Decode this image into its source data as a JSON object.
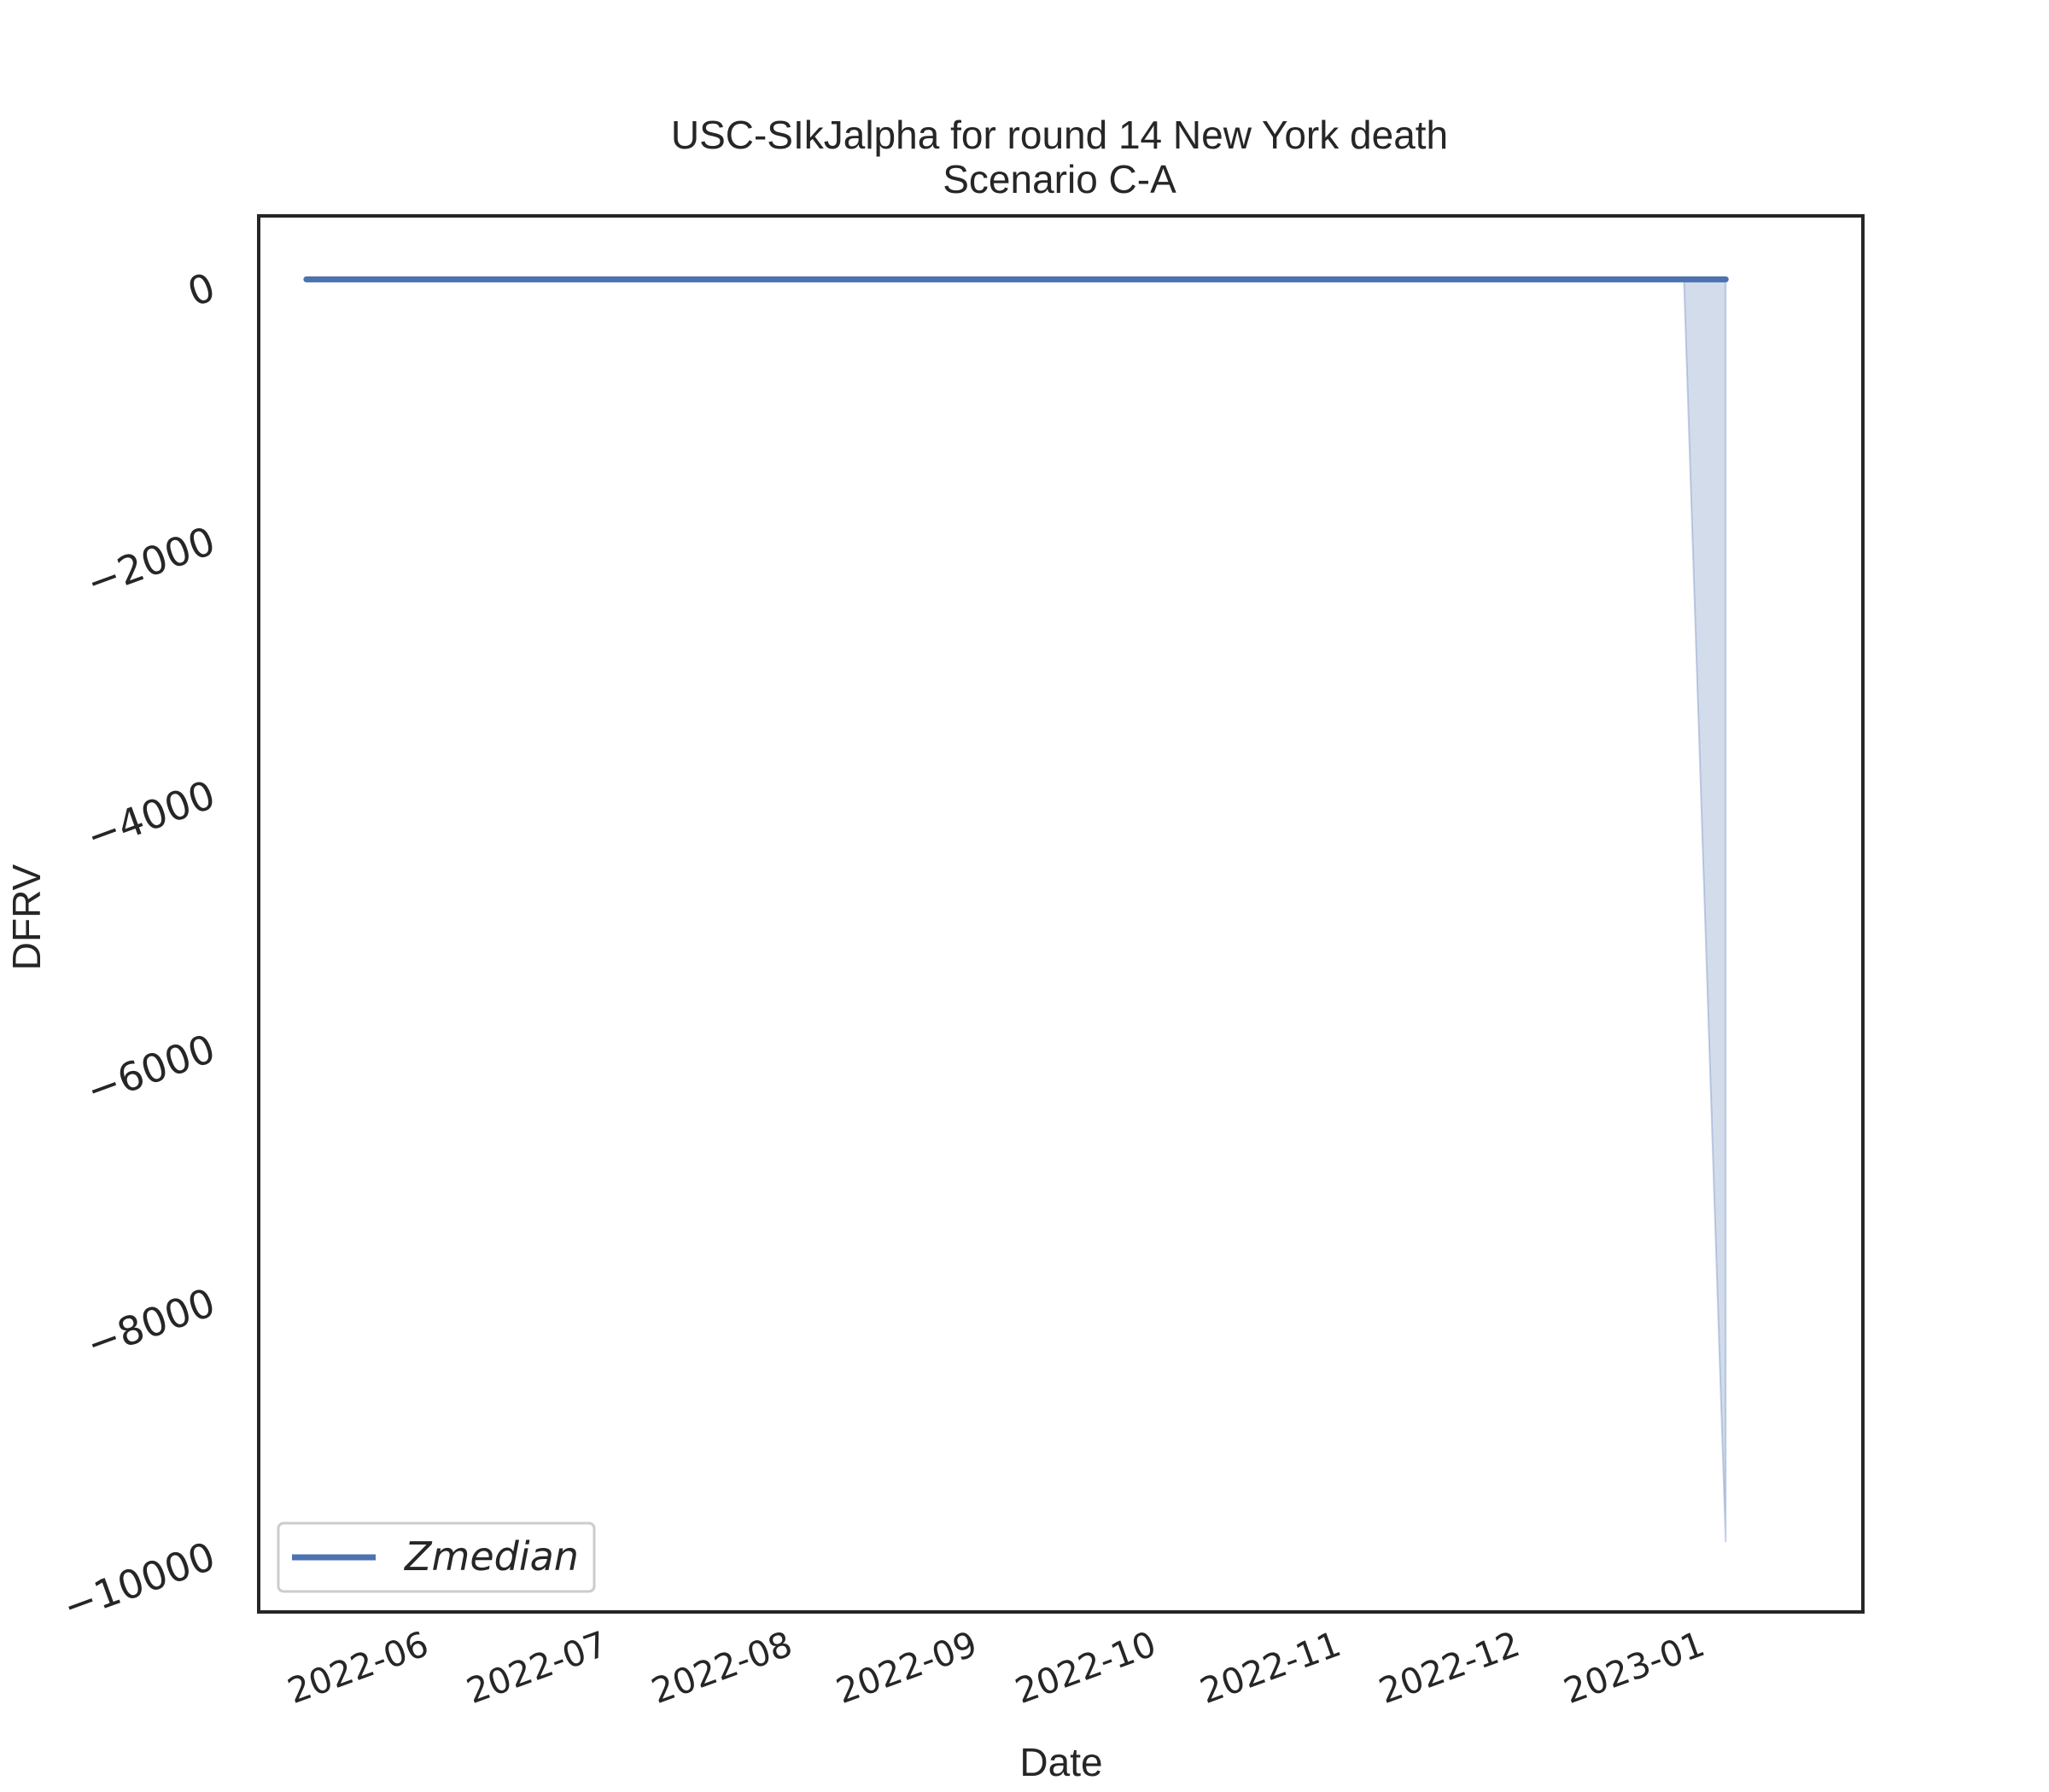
{
  "chart_data": {
    "type": "area",
    "title": "USC-SIkJalpha for round 14 New York death\nScenario C-A",
    "title_lines": [
      "USC-SIkJalpha for round 14 New York death",
      "Scenario C-A"
    ],
    "xlabel": "Date",
    "ylabel": "DFRV",
    "x_ticks": [
      "2022-06",
      "2022-07",
      "2022-08",
      "2022-09",
      "2022-10",
      "2022-11",
      "2022-12",
      "2023-01"
    ],
    "y_ticks": [
      0,
      -2000,
      -4000,
      -6000,
      -8000,
      -10000
    ],
    "y_tick_labels": [
      "0",
      "−2000",
      "−4000",
      "−6000",
      "−8000",
      "−10000"
    ],
    "xlim": [
      "2022-05-06",
      "2023-01-30"
    ],
    "ylim": [
      -10500,
      500
    ],
    "grid": false,
    "legend_position": "lower-left",
    "series": [
      {
        "name": "Zmedian",
        "color": "#4c72b0",
        "x": [
          "2022-05-14",
          "2022-06-01",
          "2022-07-01",
          "2022-08-01",
          "2022-09-01",
          "2022-10-01",
          "2022-11-01",
          "2022-12-01",
          "2023-01-01",
          "2023-01-07"
        ],
        "y": [
          0,
          0,
          0,
          0,
          0,
          0,
          0,
          0,
          0,
          0
        ]
      }
    ],
    "band": {
      "color": "#4c72b0",
      "opacity": 0.25,
      "x": [
        "2022-05-14",
        "2022-12-31",
        "2023-01-07"
      ],
      "lower": [
        0,
        0,
        -9950
      ],
      "upper": [
        0,
        0,
        0
      ]
    }
  }
}
